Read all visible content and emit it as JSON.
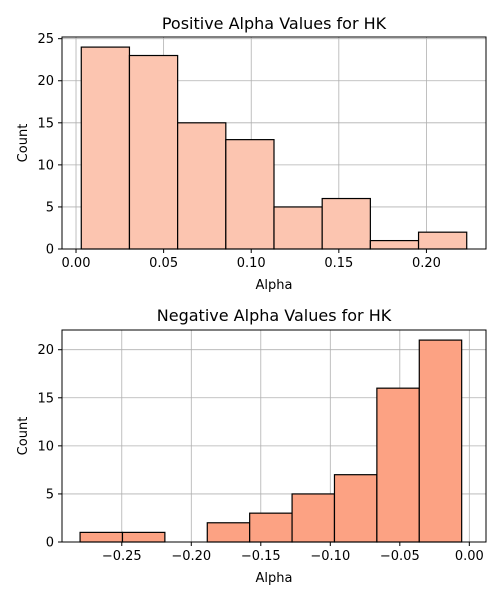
{
  "chart_data": [
    {
      "type": "bar",
      "title": "Positive Alpha Values for HK",
      "xlabel": "Alpha",
      "ylabel": "Count",
      "bin_edges": [
        0.003,
        0.0305,
        0.058,
        0.0855,
        0.113,
        0.1405,
        0.168,
        0.1955,
        0.223
      ],
      "values": [
        24,
        23,
        15,
        13,
        5,
        6,
        1,
        2
      ],
      "xlim": [
        -0.008,
        0.234
      ],
      "ylim": [
        0,
        25.2
      ],
      "xticks": [
        0.0,
        0.05,
        0.1,
        0.15,
        0.2
      ],
      "xtick_labels": [
        "0.00",
        "0.05",
        "0.10",
        "0.15",
        "0.20"
      ],
      "yticks": [
        0,
        5,
        10,
        15,
        20,
        25
      ],
      "ytick_labels": [
        "0",
        "5",
        "10",
        "15",
        "20",
        "25"
      ],
      "grid": true,
      "color": "#fcc5b0"
    },
    {
      "type": "bar",
      "title": "Negative Alpha Values for HK",
      "xlabel": "Alpha",
      "ylabel": "Count",
      "bin_edges": [
        -0.28,
        -0.2495,
        -0.219,
        -0.1885,
        -0.158,
        -0.1275,
        -0.097,
        -0.0665,
        -0.036,
        -0.0055
      ],
      "bin_edges_note": "",
      "values": [
        1,
        1,
        0,
        2,
        3,
        5,
        7,
        16,
        21
      ],
      "xlim": [
        -0.293,
        0.012
      ],
      "ylim": [
        0,
        22.05
      ],
      "xticks": [
        -0.25,
        -0.2,
        -0.15,
        -0.1,
        -0.05,
        0.0
      ],
      "xtick_labels": [
        "−0.25",
        "−0.20",
        "−0.15",
        "−0.10",
        "−0.05",
        "0.00"
      ],
      "yticks": [
        0,
        5,
        10,
        15,
        20
      ],
      "ytick_labels": [
        "0",
        "5",
        "10",
        "15",
        "20"
      ],
      "grid": true,
      "color": "#fca283"
    }
  ]
}
